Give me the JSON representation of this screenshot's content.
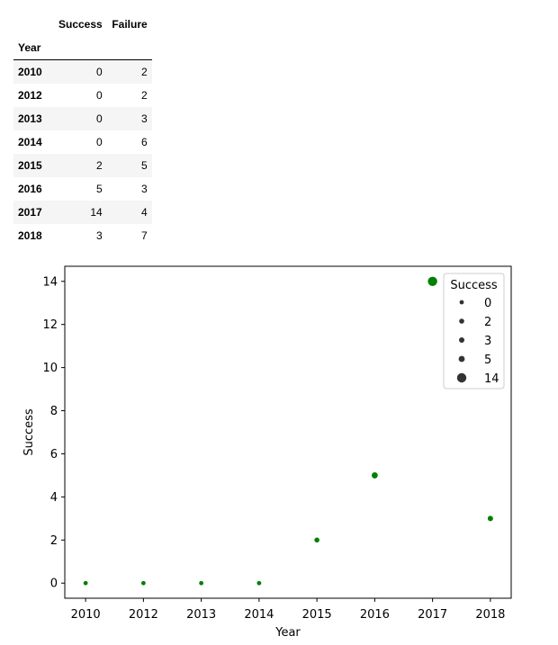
{
  "table": {
    "columns": [
      "Success",
      "Failure"
    ],
    "index_name": "Year",
    "rows": [
      {
        "year": "2010",
        "success": "0",
        "failure": "2"
      },
      {
        "year": "2012",
        "success": "0",
        "failure": "2"
      },
      {
        "year": "2013",
        "success": "0",
        "failure": "3"
      },
      {
        "year": "2014",
        "success": "0",
        "failure": "6"
      },
      {
        "year": "2015",
        "success": "2",
        "failure": "5"
      },
      {
        "year": "2016",
        "success": "5",
        "failure": "3"
      },
      {
        "year": "2017",
        "success": "14",
        "failure": "4"
      },
      {
        "year": "2018",
        "success": "3",
        "failure": "7"
      }
    ]
  },
  "chart_data": {
    "type": "scatter",
    "title": "",
    "xlabel": "Year",
    "ylabel": "Success",
    "x": [
      "2010",
      "2012",
      "2013",
      "2014",
      "2015",
      "2016",
      "2017",
      "2018"
    ],
    "y": [
      0,
      0,
      0,
      0,
      2,
      5,
      14,
      3
    ],
    "ylim": [
      -0.7,
      14.7
    ],
    "yticks": [
      0,
      2,
      4,
      6,
      8,
      10,
      12,
      14
    ],
    "color": "#008000",
    "size_variable": "Success",
    "legend": {
      "title": "Success",
      "placement": "top-right",
      "entries": [
        0,
        2,
        3,
        5,
        14
      ],
      "marker_color": "#333333"
    },
    "grid": false
  }
}
